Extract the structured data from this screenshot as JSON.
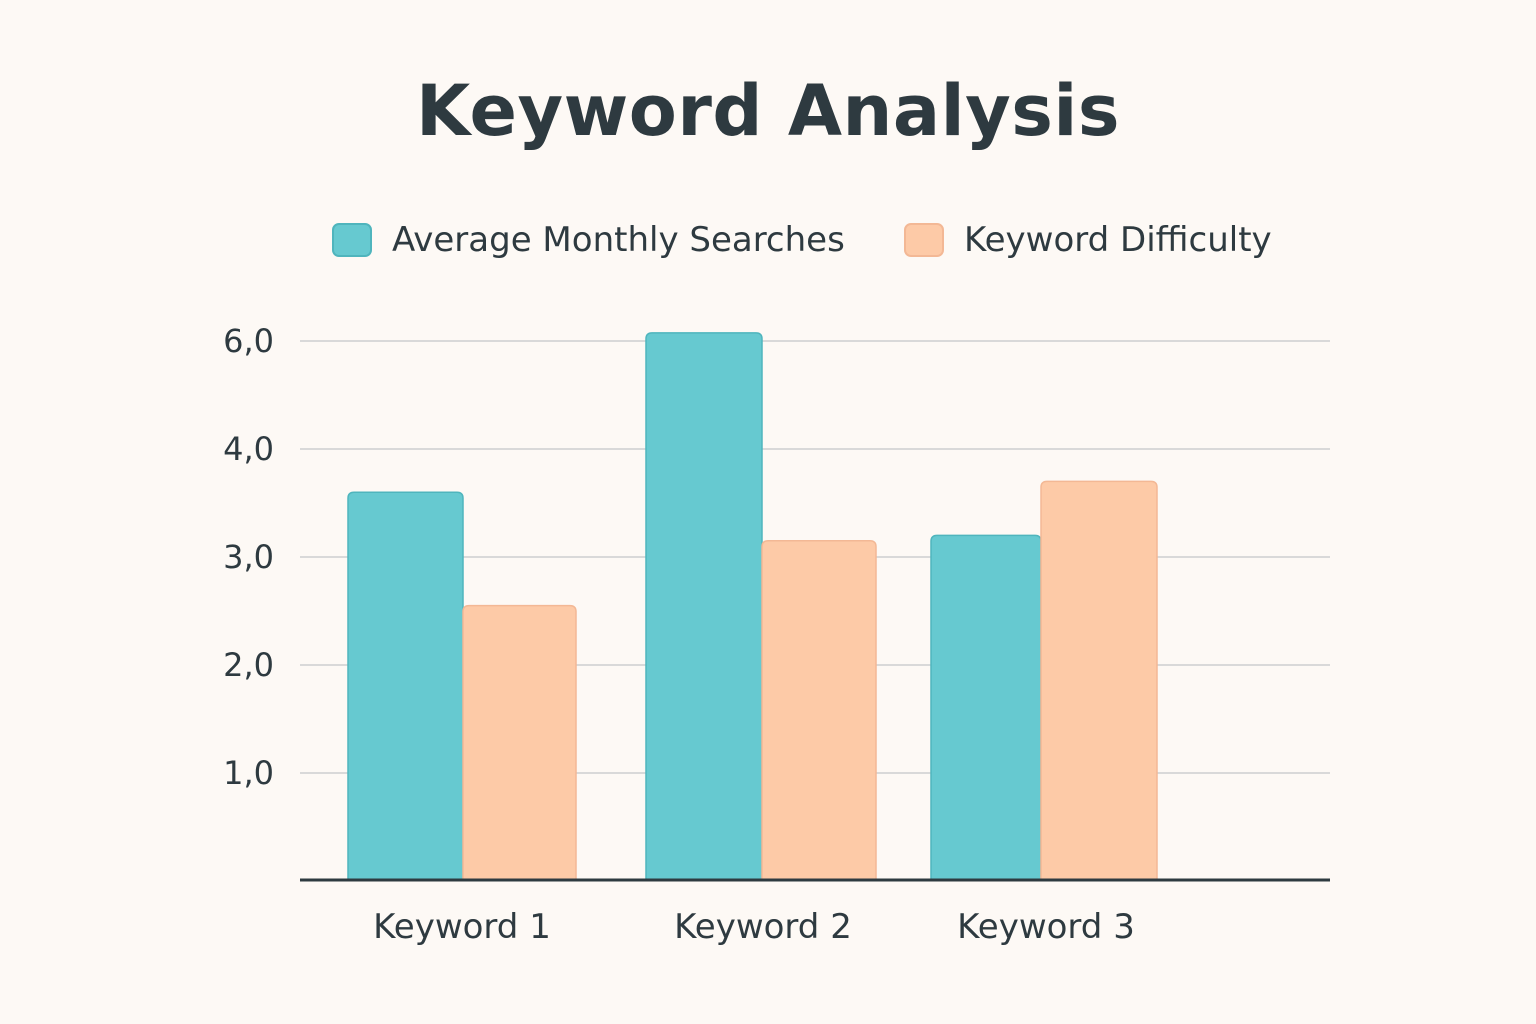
{
  "colors": {
    "background": "#fdf9f5",
    "text": "#2e3a40",
    "series_1_fill": "#66c9d0",
    "series_1_stroke": "#4fb5bd",
    "series_2_fill": "#fdcaa7",
    "series_2_stroke": "#f3b895",
    "grid": "#d9d9d9",
    "axis": "#2e3a40"
  },
  "chart_data": {
    "type": "bar",
    "title": "Keyword Analysis",
    "xlabel": "",
    "ylabel": "",
    "categories": [
      "Keyword 1",
      "Keyword 2",
      "Keyword 3"
    ],
    "series": [
      {
        "name": "Average Monthly Searches",
        "values": [
          3.6,
          6.15,
          3.2
        ]
      },
      {
        "name": "Keyword Difficulty",
        "values": [
          2.55,
          3.15,
          3.7
        ]
      }
    ],
    "y_ticks": [
      {
        "value": 1,
        "label": "1,0"
      },
      {
        "value": 2,
        "label": "2,0"
      },
      {
        "value": 3,
        "label": "3,0"
      },
      {
        "value": 4,
        "label": "4,0"
      },
      {
        "value": 6,
        "label": "6,0"
      }
    ],
    "grid": true,
    "legend_position": "top"
  }
}
